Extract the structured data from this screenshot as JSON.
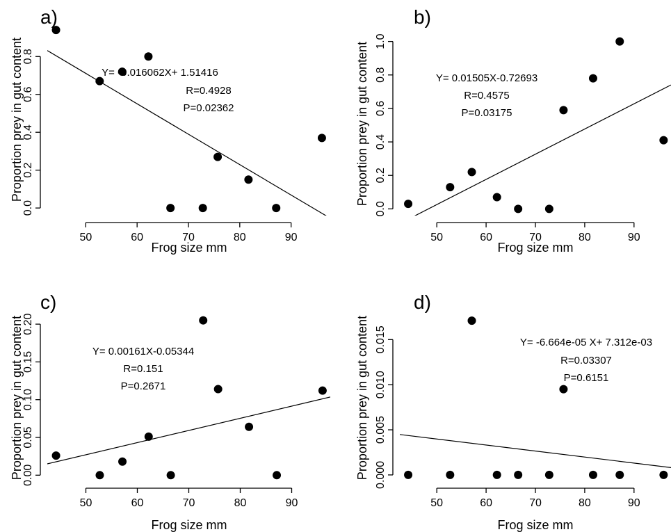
{
  "chart_data": [
    {
      "type": "scatter",
      "panel_label": "a)",
      "xlabel": "Frog size mm",
      "ylabel": "Proportion prey in gut content",
      "xlim": [
        42.5,
        97.5
      ],
      "ylim": [
        -0.04,
        0.97
      ],
      "x_ticks": [
        50,
        60,
        70,
        80,
        90
      ],
      "x_tick_labels": [
        "50",
        "60",
        "70",
        "80",
        "90"
      ],
      "y_ticks": [
        0.0,
        0.2,
        0.4,
        0.6,
        0.8
      ],
      "y_tick_labels": [
        "0.0",
        "0.2",
        "0.4",
        "0.6",
        "0.8"
      ],
      "x": [
        44.2,
        52.7,
        57.1,
        62.2,
        66.5,
        72.8,
        75.7,
        81.7,
        87.1,
        96.0
      ],
      "y": [
        0.94,
        0.67,
        0.72,
        0.8,
        0.0,
        0.0,
        0.27,
        0.15,
        0.0,
        0.37
      ],
      "fit": {
        "slope": -0.016062,
        "intercept": 1.51416
      },
      "annotations": [
        "Y= -0.016062X+ 1.51416",
        "R=0.4928",
        "P=0.02362"
      ]
    },
    {
      "type": "scatter",
      "panel_label": "b)",
      "xlabel": "Frog size mm",
      "ylabel": "Proportion prey in gut content",
      "xlim": [
        42.5,
        97.5
      ],
      "ylim": [
        -0.04,
        1.04
      ],
      "x_ticks": [
        50,
        60,
        70,
        80,
        90
      ],
      "x_tick_labels": [
        "50",
        "60",
        "70",
        "80",
        "90"
      ],
      "y_ticks": [
        0.0,
        0.2,
        0.4,
        0.6,
        0.8,
        1.0
      ],
      "y_tick_labels": [
        "0.0",
        "0.2",
        "0.4",
        "0.6",
        "0.8",
        "1.0"
      ],
      "x": [
        44.2,
        52.7,
        57.1,
        62.2,
        66.5,
        72.8,
        75.7,
        81.7,
        87.1,
        96.0
      ],
      "y": [
        0.03,
        0.13,
        0.22,
        0.07,
        0.0,
        0.0,
        0.59,
        0.78,
        1.0,
        0.41
      ],
      "fit": {
        "slope": 0.01505,
        "intercept": -0.72693
      },
      "annotations": [
        "Y= 0.01505X-0.72693",
        "R=0.4575",
        "P=0.03175"
      ]
    },
    {
      "type": "scatter",
      "panel_label": "c)",
      "xlabel": "Frog size mm",
      "ylabel": "Proportion prey in gut content",
      "xlim": [
        42.5,
        97.5
      ],
      "ylim": [
        -0.008,
        0.213
      ],
      "x_ticks": [
        50,
        60,
        70,
        80,
        90
      ],
      "x_tick_labels": [
        "50",
        "60",
        "70",
        "80",
        "90"
      ],
      "y_ticks": [
        0.0,
        0.05,
        0.1,
        0.15,
        0.2
      ],
      "y_tick_labels": [
        "0.00",
        "0.05",
        "0.10",
        "0.15",
        "0.20"
      ],
      "x": [
        44.2,
        52.7,
        57.1,
        62.2,
        66.5,
        72.8,
        75.7,
        81.7,
        87.1,
        96.0
      ],
      "y": [
        0.026,
        0.0,
        0.018,
        0.051,
        0.0,
        0.205,
        0.114,
        0.064,
        0.0,
        0.112
      ],
      "fit": {
        "slope": 0.00161,
        "intercept": -0.05344
      },
      "annotations": [
        "Y= 0.00161X-0.05344",
        "R=0.151",
        "P=0.2671"
      ]
    },
    {
      "type": "scatter",
      "panel_label": "d)",
      "xlabel": "Frog size mm",
      "ylabel": "Proportion prey in gut content",
      "xlim": [
        42.5,
        97.5
      ],
      "ylim": [
        -0.0007,
        0.0178
      ],
      "x_ticks": [
        50,
        60,
        70,
        80,
        90
      ],
      "x_tick_labels": [
        "50",
        "60",
        "70",
        "80",
        "90"
      ],
      "y_ticks": [
        0.0,
        0.005,
        0.01,
        0.015
      ],
      "y_tick_labels": [
        "0.000",
        "0.005",
        "0.010",
        "0.015"
      ],
      "x": [
        44.2,
        52.7,
        57.1,
        62.2,
        66.5,
        72.8,
        75.7,
        81.7,
        87.1,
        96.0
      ],
      "y": [
        0.0,
        0.0,
        0.0171,
        0.0,
        0.0,
        0.0,
        0.0095,
        0.0,
        0.0,
        0.0
      ],
      "fit": {
        "slope": -6.664e-05,
        "intercept": 0.007312
      },
      "annotations": [
        "Y= -6.664e-05 X+ 7.312e-03",
        "R=0.03307",
        "P=0.6151"
      ]
    }
  ]
}
